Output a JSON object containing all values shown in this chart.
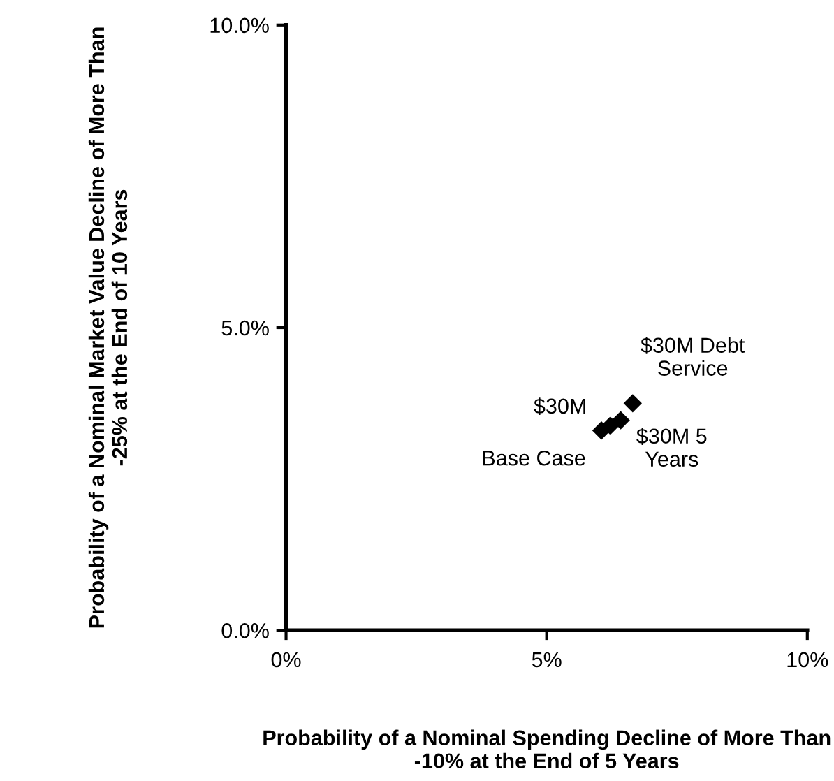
{
  "chart_data": {
    "type": "scatter",
    "xlabel": "Probability of a Nominal Spending Decline of More Than -10% at the End of 5 Years",
    "ylabel": "Probability of a Nominal Market Value Decline of More Than -25% at the End of 10 Years",
    "x": [
      6.05,
      6.22,
      6.42,
      6.65
    ],
    "series": [
      {
        "color": "#000000",
        "values": [
          3.3,
          3.38,
          3.47,
          3.75
        ]
      }
    ],
    "marker": "diamond",
    "xlim": [
      0,
      10
    ],
    "xticks": [
      {
        "value": 0,
        "label": "0%"
      },
      {
        "value": 5,
        "label": "5%"
      },
      {
        "value": 10,
        "label": "10%"
      }
    ],
    "ylim": [
      0,
      10
    ],
    "yticks": [
      {
        "value": 0,
        "label": "0.0%"
      },
      {
        "value": 5,
        "label": "5.0%"
      },
      {
        "value": 10,
        "label": "10.0%"
      }
    ],
    "grid": false,
    "legend": false,
    "annotations": [
      {
        "text": "Base Case",
        "x": 6.05,
        "y": 3.3
      },
      {
        "text": "$30M",
        "x": 6.22,
        "y": 3.38
      },
      {
        "text": "$30M 5\nYears",
        "x": 6.42,
        "y": 3.47
      },
      {
        "text": "$30M Debt\nService",
        "x": 6.65,
        "y": 3.75
      }
    ]
  }
}
